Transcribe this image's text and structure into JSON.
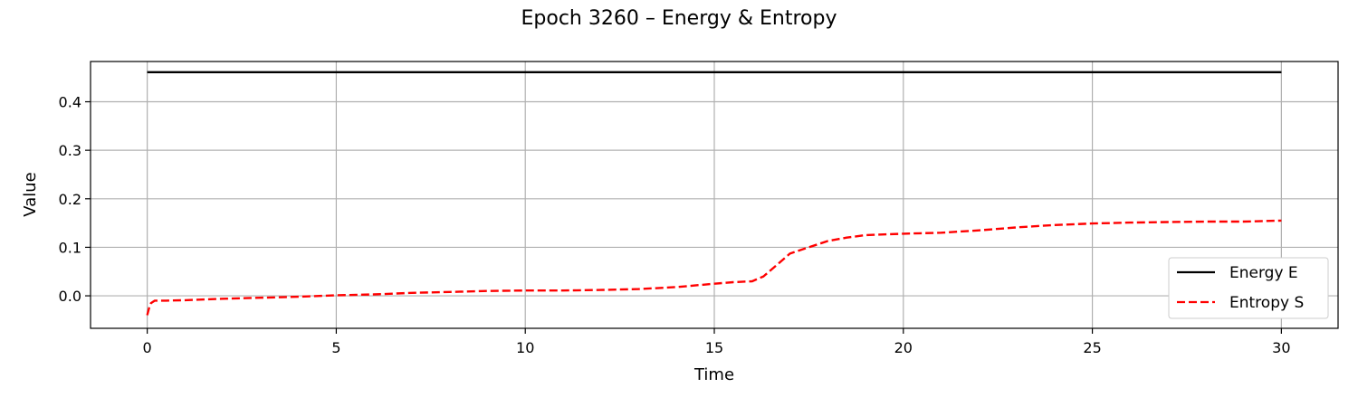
{
  "chart_data": {
    "type": "line",
    "title": "Epoch 3260 – Energy & Entropy",
    "xlabel": "Time",
    "ylabel": "Value",
    "xlim": [
      -1.5,
      31.5
    ],
    "ylim": [
      -0.067,
      0.483
    ],
    "x_ticks": [
      0,
      5,
      10,
      15,
      20,
      25,
      30
    ],
    "y_ticks": [
      0.0,
      0.1,
      0.2,
      0.3,
      0.4
    ],
    "y_tick_labels": [
      "0.0",
      "0.1",
      "0.2",
      "0.3",
      "0.4"
    ],
    "grid": true,
    "legend_position": "lower-right",
    "series": [
      {
        "name": "Energy E",
        "color": "#000000",
        "style": "solid",
        "x": [
          0,
          30
        ],
        "y": [
          0.461,
          0.461
        ]
      },
      {
        "name": "Entropy S",
        "color": "#ff0000",
        "style": "dashed",
        "x": [
          0,
          0.05,
          0.1,
          0.2,
          0.3,
          0.5,
          1,
          2,
          3,
          4,
          5,
          6,
          7,
          8,
          9,
          10,
          11,
          12,
          12.5,
          13,
          14,
          15,
          15.5,
          16,
          16.3,
          16.6,
          17,
          17.5,
          18,
          18.5,
          19,
          20,
          21,
          22,
          23,
          24,
          25,
          26,
          27,
          28,
          29,
          30
        ],
        "y": [
          -0.04,
          -0.025,
          -0.015,
          -0.01,
          -0.01,
          -0.01,
          -0.009,
          -0.006,
          -0.004,
          -0.002,
          0.001,
          0.003,
          0.006,
          0.008,
          0.01,
          0.011,
          0.011,
          0.012,
          0.013,
          0.014,
          0.018,
          0.025,
          0.028,
          0.03,
          0.04,
          0.06,
          0.087,
          0.1,
          0.113,
          0.12,
          0.125,
          0.128,
          0.13,
          0.135,
          0.141,
          0.146,
          0.149,
          0.151,
          0.152,
          0.153,
          0.153,
          0.155
        ]
      }
    ]
  }
}
